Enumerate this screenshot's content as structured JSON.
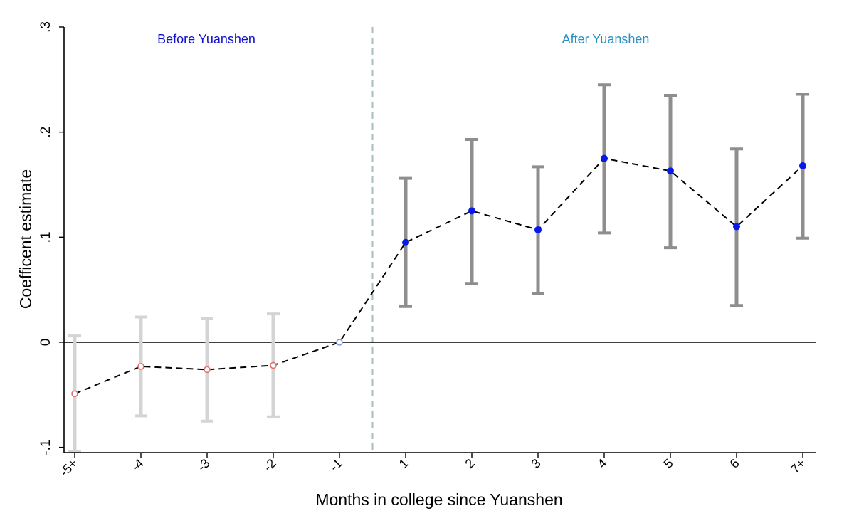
{
  "chart_data": {
    "type": "scatter",
    "xlabel": "Months in college since Yuanshen",
    "ylabel": "Coefficent estimate",
    "ylim": [
      -0.105,
      0.3
    ],
    "yticks": [
      {
        "value": -0.1,
        "label": "-.1"
      },
      {
        "value": 0,
        "label": "0"
      },
      {
        "value": 0.1,
        "label": ".1"
      },
      {
        "value": 0.2,
        "label": ".2"
      },
      {
        "value": 0.3,
        "label": ".3"
      }
    ],
    "categories": [
      "-5+",
      "-4",
      "-3",
      "-2",
      "-1",
      "1",
      "2",
      "3",
      "4",
      "5",
      "6",
      "7+"
    ],
    "estimates": [
      -0.049,
      -0.023,
      -0.026,
      -0.022,
      0.0,
      0.095,
      0.125,
      0.107,
      0.175,
      0.163,
      0.11,
      0.168
    ],
    "ci_lower": [
      -0.104,
      -0.07,
      -0.075,
      -0.071,
      0.0,
      0.034,
      0.056,
      0.046,
      0.104,
      0.09,
      0.035,
      0.099
    ],
    "ci_upper": [
      0.006,
      0.024,
      0.023,
      0.027,
      0.0,
      0.156,
      0.193,
      0.167,
      0.245,
      0.235,
      0.184,
      0.236
    ],
    "groups": [
      "before",
      "before",
      "before",
      "before",
      "reference",
      "after",
      "after",
      "after",
      "after",
      "after",
      "after",
      "after"
    ],
    "annotations": [
      {
        "text": "Before Yuanshen",
        "color": "#1010cc"
      },
      {
        "text": "After Yuanshen",
        "color": "#2a8fc0"
      }
    ],
    "reference_lines": {
      "horizontal_y": 0,
      "vertical_between": [
        "-1",
        "1"
      ]
    },
    "colors": {
      "before_ci": "#d4d4d4",
      "after_ci": "#8e8e8e",
      "before_marker": "#e07070",
      "reference_marker": "#8f95e8",
      "after_marker": "#0a1ae6",
      "connector": "#000000",
      "vline": "#a9bec0"
    },
    "grid": false,
    "legend": "none"
  }
}
